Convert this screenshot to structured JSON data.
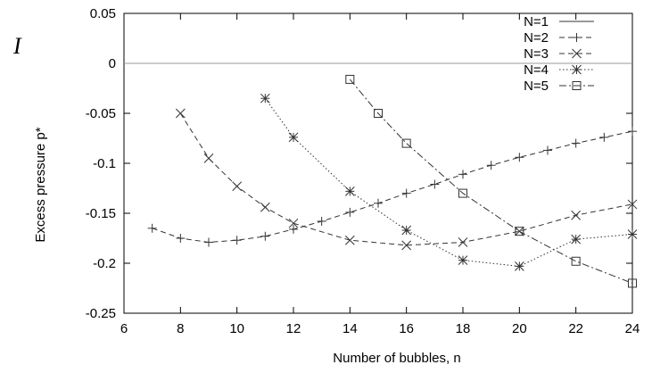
{
  "fragment_text": "I",
  "chart_data": {
    "type": "line",
    "title": "",
    "xlabel": "Number of bubbles, n",
    "ylabel": "Excess pressure p*",
    "xlim": [
      6,
      24
    ],
    "ylim": [
      -0.25,
      0.05
    ],
    "xticks": [
      "6",
      "8",
      "10",
      "12",
      "14",
      "16",
      "18",
      "20",
      "22",
      "24"
    ],
    "yticks": [
      "0.05",
      "0",
      "-0.05",
      "-0.1",
      "-0.15",
      "-0.2",
      "-0.25"
    ],
    "grid": false,
    "legend_position": "top-right",
    "series": [
      {
        "name": "N=1",
        "marker": "none",
        "dash": "solid",
        "x": [
          6,
          24
        ],
        "y": [
          0,
          0
        ]
      },
      {
        "name": "N=2",
        "marker": "plus",
        "dash": "dashed",
        "x": [
          7,
          8,
          9,
          10,
          11,
          12,
          13,
          14,
          15,
          16,
          17,
          18,
          19,
          20,
          21,
          22,
          23,
          24
        ],
        "y": [
          -0.165,
          -0.175,
          -0.179,
          -0.177,
          -0.173,
          -0.166,
          -0.158,
          -0.149,
          -0.14,
          -0.13,
          -0.121,
          -0.111,
          -0.102,
          -0.094,
          -0.087,
          -0.08,
          -0.074,
          -0.068
        ]
      },
      {
        "name": "N=3",
        "marker": "cross",
        "dash": "dashed",
        "x": [
          8,
          9,
          10,
          11,
          12,
          14,
          16,
          18,
          20,
          22,
          24
        ],
        "y": [
          -0.05,
          -0.095,
          -0.123,
          -0.144,
          -0.16,
          -0.177,
          -0.182,
          -0.179,
          -0.168,
          -0.152,
          -0.141
        ]
      },
      {
        "name": "N=4",
        "marker": "star",
        "dash": "dotted",
        "x": [
          11,
          12,
          14,
          16,
          18,
          20,
          22,
          24
        ],
        "y": [
          -0.035,
          -0.074,
          -0.128,
          -0.167,
          -0.197,
          -0.203,
          -0.176,
          -0.171
        ]
      },
      {
        "name": "N=5",
        "marker": "square",
        "dash": "dashdot",
        "x": [
          14,
          15,
          16,
          18,
          20,
          22,
          24
        ],
        "y": [
          -0.016,
          -0.05,
          -0.08,
          -0.13,
          -0.168,
          -0.198,
          -0.22
        ]
      }
    ]
  }
}
